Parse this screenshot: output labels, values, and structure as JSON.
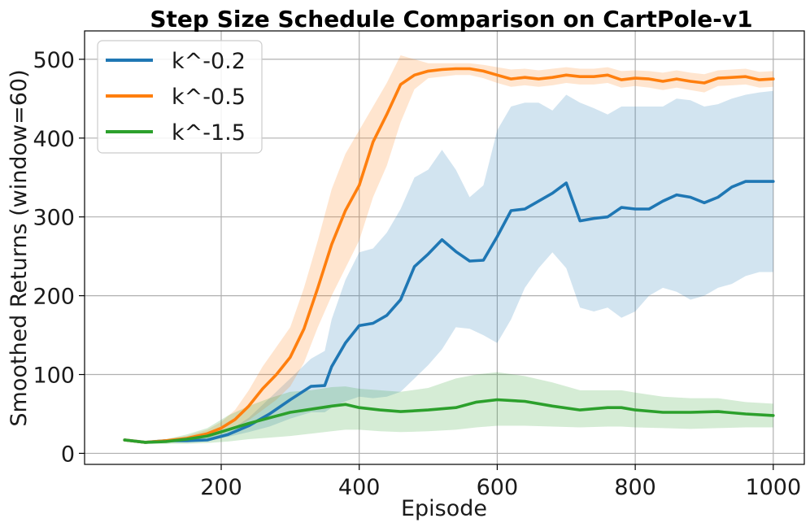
{
  "chart_data": {
    "type": "line",
    "title": "Step Size Schedule Comparison on CartPole-v1",
    "xlabel": "Episode",
    "ylabel": "Smoothed Returns (window=60)",
    "xlim": [
      2,
      1045
    ],
    "ylim": [
      -14,
      536
    ],
    "xticks": [
      200,
      400,
      600,
      800,
      1000
    ],
    "yticks": [
      0,
      100,
      200,
      300,
      400,
      500
    ],
    "grid": true,
    "legend_position": "top-left",
    "series": [
      {
        "name": "k^-0.2",
        "color": "#1f77b4",
        "x": [
          60,
          90,
          120,
          150,
          180,
          210,
          240,
          270,
          300,
          330,
          350,
          360,
          380,
          400,
          420,
          440,
          460,
          480,
          500,
          520,
          540,
          560,
          580,
          600,
          620,
          640,
          660,
          680,
          700,
          720,
          740,
          760,
          780,
          800,
          820,
          840,
          860,
          880,
          900,
          920,
          940,
          960,
          980,
          1000
        ],
        "mean": [
          17,
          14,
          16,
          16,
          17,
          24,
          35,
          50,
          68,
          85,
          86,
          110,
          140,
          162,
          165,
          175,
          195,
          237,
          253,
          271,
          256,
          244,
          245,
          275,
          308,
          310,
          320,
          330,
          343,
          295,
          298,
          300,
          312,
          310,
          310,
          320,
          328,
          325,
          318,
          325,
          338,
          345,
          345,
          345
        ],
        "lower": [
          15,
          13,
          14,
          15,
          16,
          21,
          27,
          34,
          44,
          52,
          52,
          58,
          66,
          72,
          70,
          72,
          78,
          95,
          112,
          132,
          160,
          158,
          150,
          140,
          170,
          210,
          235,
          255,
          235,
          185,
          180,
          185,
          172,
          180,
          200,
          210,
          205,
          195,
          200,
          210,
          215,
          225,
          230,
          230
        ],
        "upper": [
          19,
          16,
          18,
          18,
          20,
          28,
          45,
          70,
          95,
          120,
          130,
          170,
          220,
          255,
          260,
          280,
          310,
          350,
          360,
          385,
          360,
          325,
          340,
          410,
          440,
          445,
          445,
          435,
          455,
          445,
          438,
          430,
          440,
          440,
          440,
          440,
          450,
          448,
          440,
          443,
          450,
          455,
          458,
          460
        ]
      },
      {
        "name": "k^-0.5",
        "color": "#ff7f0e",
        "x": [
          60,
          90,
          120,
          150,
          180,
          200,
          220,
          240,
          260,
          280,
          300,
          320,
          340,
          360,
          380,
          400,
          420,
          440,
          460,
          480,
          500,
          520,
          540,
          560,
          580,
          600,
          620,
          640,
          660,
          680,
          700,
          720,
          740,
          760,
          780,
          800,
          820,
          840,
          860,
          880,
          900,
          920,
          940,
          960,
          980,
          1000
        ],
        "mean": [
          17,
          14,
          16,
          19,
          25,
          32,
          43,
          60,
          82,
          100,
          122,
          158,
          210,
          265,
          308,
          340,
          395,
          430,
          468,
          480,
          485,
          487,
          488,
          488,
          485,
          480,
          475,
          477,
          475,
          477,
          480,
          478,
          478,
          480,
          474,
          476,
          475,
          472,
          475,
          472,
          470,
          476,
          477,
          478,
          474,
          475
        ],
        "lower": [
          15,
          12,
          14,
          16,
          20,
          25,
          32,
          42,
          55,
          68,
          85,
          115,
          160,
          200,
          235,
          270,
          325,
          365,
          420,
          462,
          476,
          478,
          480,
          480,
          476,
          470,
          465,
          467,
          465,
          467,
          470,
          468,
          468,
          470,
          464,
          466,
          464,
          461,
          464,
          461,
          458,
          466,
          467,
          468,
          464,
          465
        ],
        "upper": [
          19,
          16,
          18,
          22,
          30,
          40,
          55,
          80,
          110,
          135,
          160,
          210,
          270,
          335,
          380,
          410,
          440,
          470,
          505,
          500,
          495,
          495,
          495,
          495,
          493,
          490,
          487,
          488,
          486,
          488,
          490,
          488,
          488,
          490,
          485,
          486,
          485,
          483,
          486,
          483,
          481,
          486,
          487,
          488,
          484,
          485
        ]
      },
      {
        "name": "k^-1.5",
        "color": "#2ca02c",
        "x": [
          60,
          90,
          120,
          150,
          180,
          210,
          240,
          270,
          300,
          330,
          360,
          380,
          400,
          430,
          460,
          500,
          540,
          570,
          600,
          640,
          680,
          720,
          760,
          780,
          800,
          840,
          880,
          920,
          960,
          1000
        ],
        "mean": [
          17,
          14,
          15,
          18,
          22,
          30,
          38,
          45,
          52,
          56,
          60,
          62,
          58,
          55,
          53,
          55,
          58,
          65,
          68,
          66,
          60,
          55,
          58,
          58,
          55,
          52,
          52,
          53,
          50,
          48
        ],
        "lower": [
          15,
          12,
          12,
          12,
          13,
          15,
          18,
          20,
          22,
          25,
          28,
          30,
          30,
          28,
          27,
          28,
          30,
          33,
          35,
          35,
          34,
          33,
          34,
          34,
          33,
          32,
          31,
          32,
          33,
          33
        ],
        "upper": [
          19,
          16,
          18,
          24,
          32,
          48,
          60,
          70,
          78,
          80,
          84,
          85,
          82,
          80,
          78,
          83,
          95,
          100,
          103,
          98,
          90,
          80,
          80,
          80,
          77,
          72,
          70,
          70,
          65,
          63
        ]
      }
    ]
  }
}
